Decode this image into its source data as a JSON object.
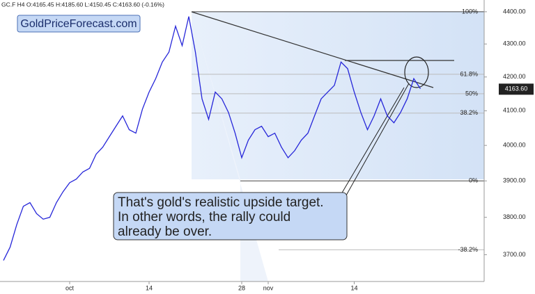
{
  "chart_data": {
    "type": "line",
    "header": "GC.F  H4  O:4165.45  H:4185.60  L:4150.45  C:4163.60  (-0.16%)",
    "watermark": "GoldPriceForecast.com",
    "annotation": [
      "That's gold's realistic upside target.",
      "In other words, the rally could",
      "already be over."
    ],
    "categories": [
      null,
      null,
      null,
      null,
      null,
      null,
      null,
      null,
      null,
      null,
      "oct",
      null,
      null,
      null,
      null,
      null,
      null,
      null,
      null,
      null,
      null,
      null,
      "14",
      null,
      null,
      null,
      null,
      null,
      null,
      null,
      null,
      null,
      null,
      null,
      null,
      null,
      "28",
      null,
      null,
      null,
      "nov",
      null,
      null,
      null,
      null,
      null,
      null,
      null,
      null,
      null,
      null,
      null,
      null,
      "14",
      null,
      null,
      null,
      null,
      null,
      null,
      null,
      null,
      null,
      null
    ],
    "series": [
      {
        "name": "GC.F",
        "color": "#2626d9",
        "values": [
          3685,
          3720,
          3780,
          3830,
          3840,
          3810,
          3795,
          3800,
          3840,
          3870,
          3895,
          3905,
          3925,
          3935,
          3975,
          3995,
          4025,
          4055,
          4085,
          4045,
          4035,
          4105,
          4155,
          4195,
          4245,
          4275,
          4355,
          4295,
          4385,
          4275,
          4135,
          4075,
          4155,
          4135,
          4095,
          4035,
          3965,
          4015,
          4045,
          4055,
          4025,
          4035,
          3995,
          3965,
          3985,
          4015,
          4035,
          4085,
          4135,
          4155,
          4175,
          4245,
          4225,
          4155,
          4095,
          4045,
          4085,
          4135,
          4085,
          4065,
          4095,
          4135,
          4195,
          4165
        ]
      }
    ],
    "log_scale": true,
    "ylim": [
      3630,
      4437
    ],
    "yticks": [
      {
        "value": 3700,
        "label": "3700.00"
      },
      {
        "value": 3800,
        "label": "3800.00"
      },
      {
        "value": 3900,
        "label": "3900.00"
      },
      {
        "value": 4000,
        "label": "4000.00"
      },
      {
        "value": 4100,
        "label": "4100.00"
      },
      {
        "value": 4200,
        "label": "4200.00"
      },
      {
        "value": 4300,
        "label": "4300.00"
      },
      {
        "value": 4400,
        "label": "4400.00"
      }
    ],
    "last_price": {
      "value": 4163.6,
      "label": "4163.60"
    },
    "fib_levels": [
      {
        "value": 4400,
        "label": "100%"
      },
      {
        "value": 4208,
        "label": "61.8%"
      },
      {
        "value": 4150,
        "label": "50%"
      },
      {
        "value": 4093,
        "label": "38.2%"
      },
      {
        "value": 3900,
        "label": "0%"
      },
      {
        "value": 3713,
        "label": "-38.2%"
      }
    ]
  }
}
